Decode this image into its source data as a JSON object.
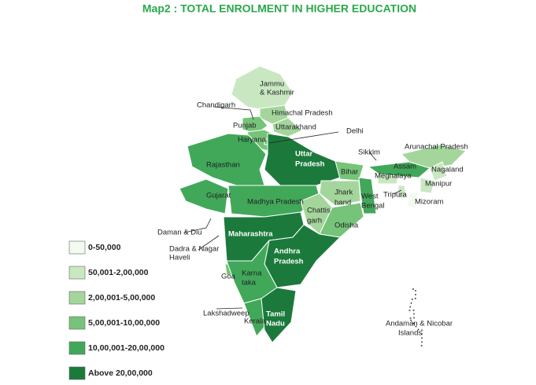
{
  "title": "Map2 : TOTAL ENROLMENT IN HIGHER EDUCATION",
  "legend": [
    {
      "label": "0-50,000",
      "color": "#f3faef"
    },
    {
      "label": "50,001-2,00,000",
      "color": "#c9e8c2"
    },
    {
      "label": "2,00,001-5,00,000",
      "color": "#a4d69c"
    },
    {
      "label": "5,00,001-10,00,000",
      "color": "#76c479"
    },
    {
      "label": "10,00,001-20,00,000",
      "color": "#41a85a"
    },
    {
      "label": "Above 20,00,000",
      "color": "#1b7a3b"
    }
  ],
  "regions": [
    {
      "label": [
        "Jammu",
        "& Kashmir"
      ],
      "color": "#c9e8c2"
    },
    {
      "label": [
        "Himachal Pradesh"
      ],
      "color": "#a4d69c"
    },
    {
      "label": [
        "Chandigarh"
      ]
    },
    {
      "label": [
        "Punjab"
      ],
      "color": "#76c479"
    },
    {
      "label": [
        "Uttarakhand"
      ],
      "color": "#a4d69c"
    },
    {
      "label": [
        "Haryana"
      ],
      "color": "#76c479"
    },
    {
      "label": [
        "Delhi"
      ],
      "color": "#76c479"
    },
    {
      "label": [
        "Rajasthan"
      ],
      "color": "#41a85a"
    },
    {
      "label": [
        "Uttar",
        "Pradesh"
      ],
      "color": "#1b7a3b"
    },
    {
      "label": [
        "Gujarat"
      ],
      "color": "#41a85a"
    },
    {
      "label": [
        "Madhya Pradesh"
      ],
      "color": "#41a85a"
    },
    {
      "label": [
        "Bihar"
      ],
      "color": "#76c479"
    },
    {
      "label": [
        "Jhark",
        "hand"
      ],
      "color": "#a4d69c"
    },
    {
      "label": [
        "West",
        "Bengal"
      ],
      "color": "#41a85a"
    },
    {
      "label": [
        "Chattis",
        "garh"
      ],
      "color": "#a4d69c"
    },
    {
      "label": [
        "Odisha"
      ],
      "color": "#76c479"
    },
    {
      "label": [
        "Maharashtra"
      ],
      "color": "#1b7a3b"
    },
    {
      "label": [
        "Daman & Diu"
      ]
    },
    {
      "label": [
        "Dadra & Nagar",
        "Haveli"
      ]
    },
    {
      "label": [
        "Andhra",
        "Pradesh"
      ],
      "color": "#1b7a3b"
    },
    {
      "label": [
        "Goa"
      ],
      "color": "#76c479"
    },
    {
      "label": [
        "Karna",
        "taka"
      ],
      "color": "#41a85a"
    },
    {
      "label": [
        "Lakshadweep"
      ]
    },
    {
      "label": [
        "Kerala"
      ],
      "color": "#41a85a"
    },
    {
      "label": [
        "Tamil",
        "Nadu"
      ],
      "color": "#1b7a3b"
    },
    {
      "label": [
        "Sikkim"
      ],
      "color": "#f3faef"
    },
    {
      "label": [
        "Arunachal Pradesh"
      ],
      "color": "#a4d69c"
    },
    {
      "label": [
        "Assam"
      ],
      "color": "#41a85a"
    },
    {
      "label": [
        "Nagaland"
      ],
      "color": "#c9e8c2"
    },
    {
      "label": [
        "Meghalaya"
      ],
      "color": "#c9e8c2"
    },
    {
      "label": [
        "Manipur"
      ],
      "color": "#c9e8c2"
    },
    {
      "label": [
        "Tripura"
      ],
      "color": "#c9e8c2"
    },
    {
      "label": [
        "Mizoram"
      ],
      "color": "#f3faef"
    },
    {
      "label": [
        "Andaman & Nicobar",
        "Islands"
      ],
      "color": "#f3faef"
    }
  ]
}
